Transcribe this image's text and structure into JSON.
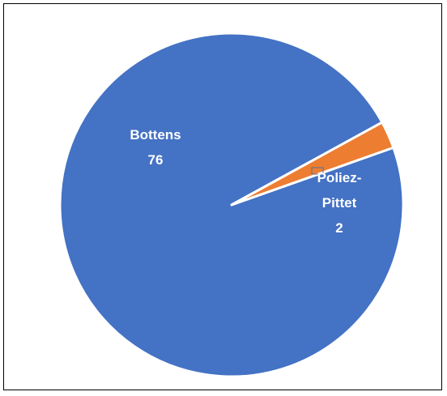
{
  "chart_data": {
    "type": "pie",
    "categories": [
      "Bottens",
      "Poliez-Pittet"
    ],
    "values": [
      76,
      2
    ],
    "colors": [
      "#4472C4",
      "#ED7D31"
    ],
    "data_labels": [
      {
        "lines": [
          "Bottens",
          "76"
        ]
      },
      {
        "lines": [
          "Poliez-",
          "Pittet",
          "2"
        ]
      }
    ],
    "legend": "none"
  }
}
